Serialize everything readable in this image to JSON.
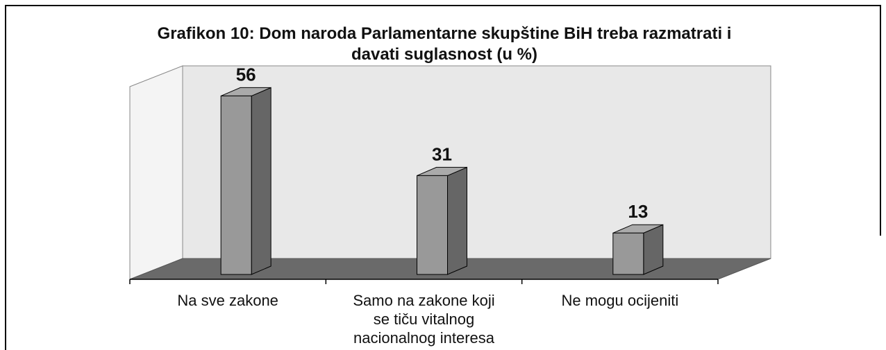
{
  "chart_data": {
    "type": "bar3d",
    "title": "Grafikon 10: Dom naroda Parlamentarne skupštine BiH treba razmatrati i davati suglasnost (u %)",
    "categories": [
      "Na sve zakone",
      "Samo na zakone koji se tiču vitalnog nacionalnog interesa",
      "Ne mogu ocijeniti"
    ],
    "values": [
      56,
      31,
      13
    ],
    "color": "#999999",
    "ylim": [
      0,
      60
    ]
  }
}
